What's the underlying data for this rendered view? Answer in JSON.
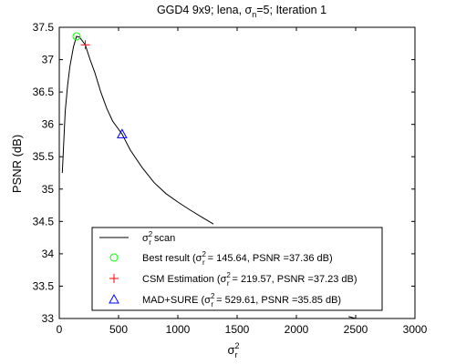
{
  "chart_data": {
    "type": "line",
    "title": {
      "prefix": "GGD4 9x9; lena, σ",
      "sub": "n",
      "suffix": "=5; Iteration 1"
    },
    "xlabel": {
      "base": "σ",
      "sup": "2",
      "sub": "r"
    },
    "ylabel": "PSNR (dB)",
    "xlim": [
      0,
      3000
    ],
    "ylim": [
      33,
      37.5
    ],
    "x_ticks": [
      0,
      500,
      1000,
      1500,
      2000,
      2500,
      3000
    ],
    "y_ticks": [
      33,
      33.5,
      34,
      34.5,
      35,
      35.5,
      36,
      36.5,
      37,
      37.5
    ],
    "grid": false,
    "legend_position": "bottom-center",
    "series": [
      {
        "label": {
          "base": "σ",
          "sup": "2",
          "sub": "r",
          "suffix": " scan"
        },
        "kind": "line",
        "color": "#000000",
        "points": [
          [
            25,
            35.25
          ],
          [
            35,
            35.6
          ],
          [
            50,
            36.2
          ],
          [
            70,
            36.6
          ],
          [
            90,
            36.9
          ],
          [
            120,
            37.2
          ],
          [
            145.64,
            37.36
          ],
          [
            170,
            37.35
          ],
          [
            219.57,
            37.23
          ],
          [
            260,
            37.0
          ],
          [
            300,
            36.8
          ],
          [
            350,
            36.5
          ],
          [
            400,
            36.25
          ],
          [
            450,
            36.05
          ],
          [
            529.61,
            35.85
          ],
          [
            600,
            35.6
          ],
          [
            700,
            35.33
          ],
          [
            800,
            35.1
          ],
          [
            900,
            34.93
          ],
          [
            1000,
            34.8
          ],
          [
            1100,
            34.68
          ],
          [
            1200,
            34.57
          ],
          [
            1300,
            34.46
          ]
        ]
      }
    ],
    "markers": [
      {
        "name": "Best result",
        "symbol": "circle",
        "color": "#00ff00",
        "x": 145.64,
        "y": 37.36,
        "legend": {
          "pre": "Best result (σ",
          "sup": "2",
          "sub": "r",
          "post": " = 145.64, PSNR =37.36 dB)"
        }
      },
      {
        "name": "CSM Estimation",
        "symbol": "plus",
        "color": "#ff0000",
        "x": 219.57,
        "y": 37.23,
        "legend": {
          "pre": "CSM Estimation (σ",
          "sup": "2",
          "sub": "r",
          "post": " = 219.57, PSNR =37.23 dB)"
        }
      },
      {
        "name": "MAD+SURE",
        "symbol": "triangle",
        "color": "#0000ff",
        "x": 529.61,
        "y": 35.85,
        "legend": {
          "pre": "MAD+SURE (σ",
          "sup": "2",
          "sub": "r",
          "post": " = 529.61, PSNR =35.85 dB)"
        }
      }
    ],
    "tail_segment": [
      [
        2440,
        33.03
      ],
      [
        2500,
        33.0
      ]
    ]
  }
}
